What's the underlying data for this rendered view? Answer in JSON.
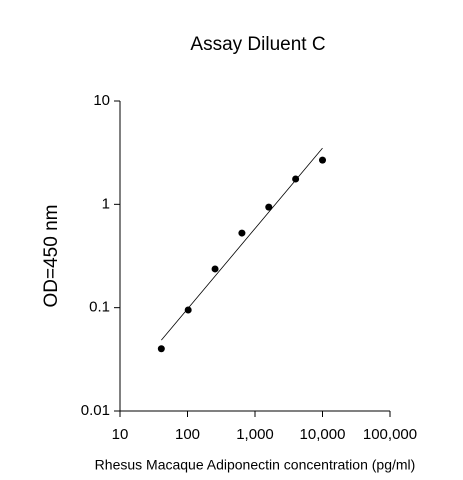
{
  "chart_data": {
    "type": "scatter",
    "title": "Assay Diluent C",
    "xlabel": "Rhesus Macaque Adiponectin concentration (pg/ml)",
    "ylabel": "OD=450 nm",
    "x": [
      40.96,
      102.4,
      256,
      640,
      1600,
      4000,
      10000
    ],
    "values": [
      0.04,
      0.095,
      0.237,
      0.527,
      0.94,
      1.76,
      2.68
    ],
    "color": "#000000",
    "trendline": {
      "x": [
        41,
        10000
      ],
      "y": [
        0.0485,
        3.5
      ]
    },
    "xscale": "log",
    "yscale": "log",
    "xlim": [
      10,
      100000
    ],
    "xticks": [
      10,
      100,
      {
        "value": 1000,
        "label": "1,000"
      },
      {
        "value": 10000,
        "label": "10,000"
      },
      {
        "value": 100000,
        "label": "100,000"
      }
    ],
    "ylim": [
      0.01,
      10
    ],
    "yticks": [
      0.01,
      0.1,
      1,
      10
    ]
  }
}
